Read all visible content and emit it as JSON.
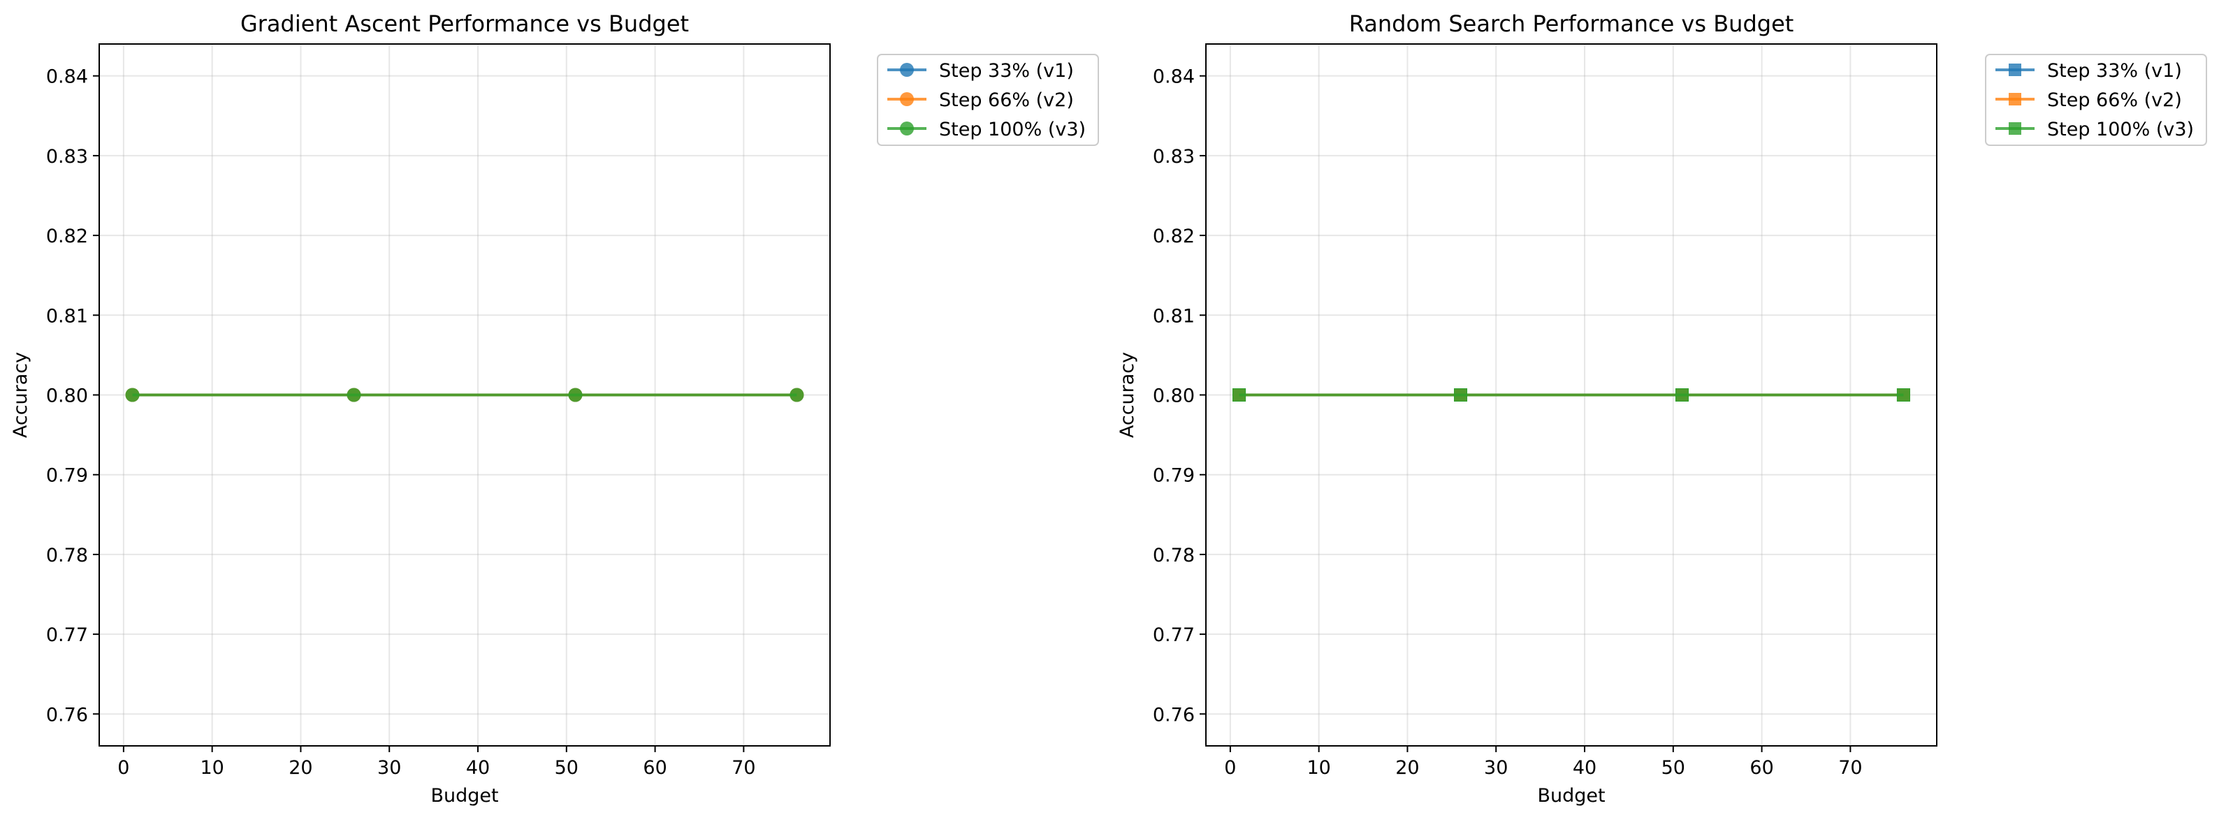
{
  "chart_data": [
    {
      "type": "line",
      "title": "Gradient Ascent Performance vs Budget",
      "xlabel": "Budget",
      "ylabel": "Accuracy",
      "xlim": [
        -2.75,
        79.75
      ],
      "ylim": [
        0.756,
        0.844
      ],
      "xticks": [
        0,
        10,
        20,
        30,
        40,
        50,
        60,
        70
      ],
      "yticks": [
        0.76,
        0.77,
        0.78,
        0.79,
        0.8,
        0.81,
        0.82,
        0.83,
        0.84
      ],
      "xtick_labels": [
        "0",
        "10",
        "20",
        "30",
        "40",
        "50",
        "60",
        "70"
      ],
      "ytick_labels": [
        "0.76",
        "0.77",
        "0.78",
        "0.79",
        "0.80",
        "0.81",
        "0.82",
        "0.83",
        "0.84"
      ],
      "grid": true,
      "legend_position": "outside-top-right",
      "marker": "circle",
      "x": [
        1,
        26,
        51,
        76
      ],
      "series": [
        {
          "name": "Step 33% (v1)",
          "color": "#1f77b4",
          "values": [
            0.8,
            0.8,
            0.8,
            0.8
          ]
        },
        {
          "name": "Step 66% (v2)",
          "color": "#ff7f0e",
          "values": [
            0.8,
            0.8,
            0.8,
            0.8
          ]
        },
        {
          "name": "Step 100% (v3)",
          "color": "#2ca02c",
          "values": [
            0.8,
            0.8,
            0.8,
            0.8
          ]
        }
      ]
    },
    {
      "type": "line",
      "title": "Random Search Performance vs Budget",
      "xlabel": "Budget",
      "ylabel": "Accuracy",
      "xlim": [
        -2.75,
        79.75
      ],
      "ylim": [
        0.756,
        0.844
      ],
      "xticks": [
        0,
        10,
        20,
        30,
        40,
        50,
        60,
        70
      ],
      "yticks": [
        0.76,
        0.77,
        0.78,
        0.79,
        0.8,
        0.81,
        0.82,
        0.83,
        0.84
      ],
      "xtick_labels": [
        "0",
        "10",
        "20",
        "30",
        "40",
        "50",
        "60",
        "70"
      ],
      "ytick_labels": [
        "0.76",
        "0.77",
        "0.78",
        "0.79",
        "0.80",
        "0.81",
        "0.82",
        "0.83",
        "0.84"
      ],
      "grid": true,
      "legend_position": "outside-top-right",
      "marker": "square",
      "x": [
        1,
        26,
        51,
        76
      ],
      "series": [
        {
          "name": "Step 33% (v1)",
          "color": "#1f77b4",
          "values": [
            0.8,
            0.8,
            0.8,
            0.8
          ]
        },
        {
          "name": "Step 66% (v2)",
          "color": "#ff7f0e",
          "values": [
            0.8,
            0.8,
            0.8,
            0.8
          ]
        },
        {
          "name": "Step 100% (v3)",
          "color": "#2ca02c",
          "values": [
            0.8,
            0.8,
            0.8,
            0.8
          ]
        }
      ]
    }
  ]
}
